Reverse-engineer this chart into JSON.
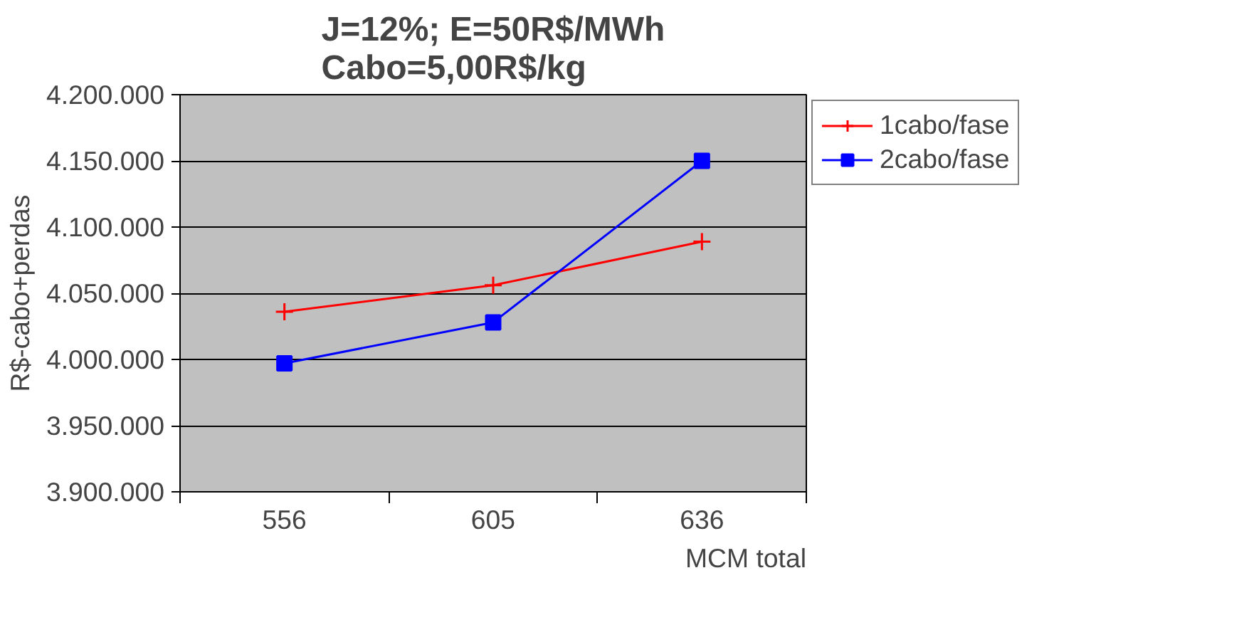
{
  "chart_data": {
    "type": "line",
    "title": "J=12%; E=50R$/MWh\nCabo=5,00R$/kg",
    "xlabel": "MCM total",
    "ylabel": "R$-cabo+perdas",
    "categories": [
      "556",
      "605",
      "636"
    ],
    "series": [
      {
        "name": "1cabo/fase",
        "color": "#ff0000",
        "marker": "cross",
        "values": [
          4036000,
          4056000,
          4089000
        ]
      },
      {
        "name": "2cabo/fase",
        "color": "#0000ff",
        "marker": "square",
        "values": [
          3997000,
          4028000,
          4150000
        ]
      }
    ],
    "ylim": [
      3900000,
      4200000
    ],
    "yticks": [
      {
        "value": 3900000,
        "label": "3.900.000"
      },
      {
        "value": 3950000,
        "label": "3.950.000"
      },
      {
        "value": 4000000,
        "label": "4.000.000"
      },
      {
        "value": 4050000,
        "label": "4.050.000"
      },
      {
        "value": 4100000,
        "label": "4.100.000"
      },
      {
        "value": 4150000,
        "label": "4.150.000"
      },
      {
        "value": 4200000,
        "label": "4.200.000"
      }
    ],
    "grid": "y",
    "legend": "top right",
    "line_style": "solid"
  }
}
